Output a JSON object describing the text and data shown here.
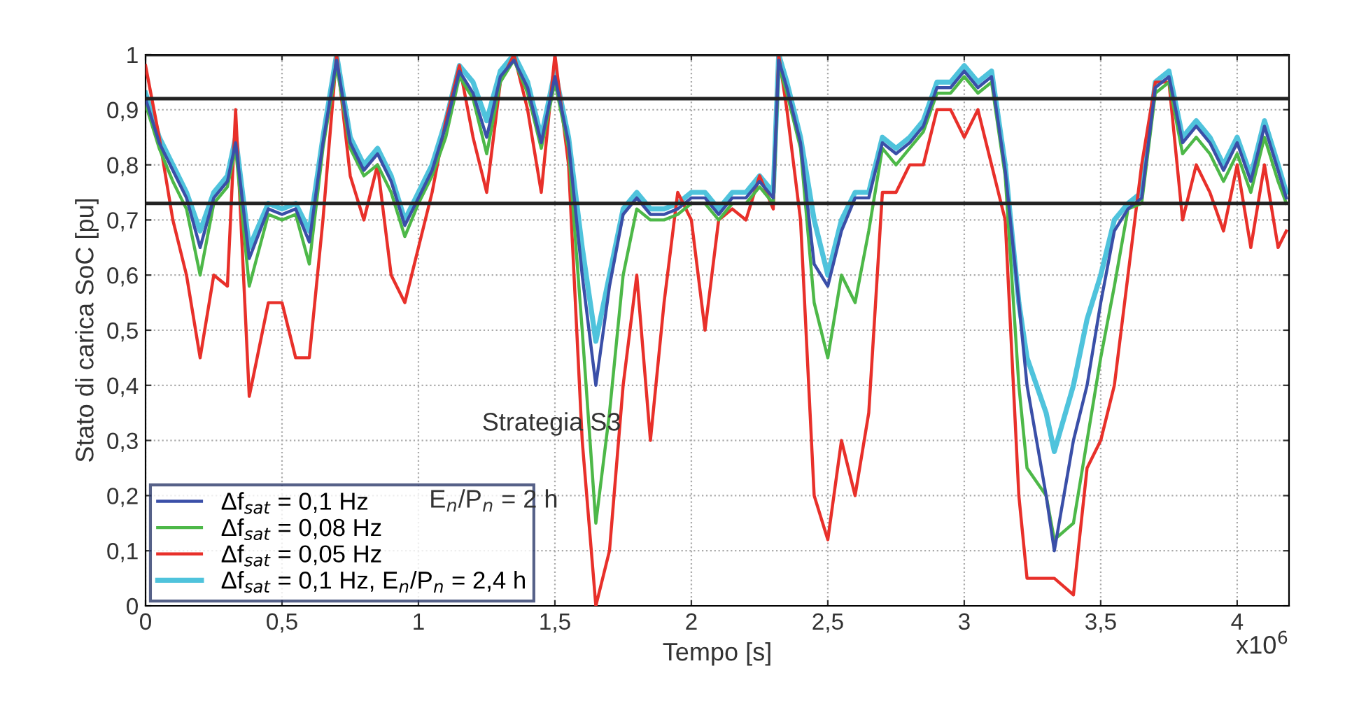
{
  "chart_data": {
    "type": "line",
    "xlabel": "Tempo [s]",
    "ylabel": "Stato di carica SoC [pu]",
    "x": [
      0,
      0.05,
      0.1,
      0.15,
      0.2,
      0.25,
      0.3,
      0.33,
      0.38,
      0.45,
      0.5,
      0.55,
      0.6,
      0.65,
      0.7,
      0.75,
      0.8,
      0.85,
      0.9,
      0.95,
      1.0,
      1.05,
      1.1,
      1.15,
      1.2,
      1.25,
      1.3,
      1.35,
      1.4,
      1.45,
      1.5,
      1.55,
      1.6,
      1.65,
      1.7,
      1.75,
      1.8,
      1.85,
      1.9,
      1.95,
      2.0,
      2.05,
      2.1,
      2.15,
      2.2,
      2.25,
      2.3,
      2.32,
      2.35,
      2.4,
      2.45,
      2.5,
      2.55,
      2.6,
      2.65,
      2.7,
      2.75,
      2.8,
      2.85,
      2.9,
      2.95,
      3.0,
      3.05,
      3.1,
      3.15,
      3.2,
      3.23,
      3.3,
      3.33,
      3.4,
      3.45,
      3.5,
      3.55,
      3.6,
      3.65,
      3.7,
      3.75,
      3.8,
      3.85,
      3.9,
      3.95,
      4.0,
      4.05,
      4.1,
      4.15,
      4.18
    ],
    "series": [
      {
        "name": "Δf$_{sat}$ = 0,1 Hz",
        "color": "#3a4fa8",
        "values": [
          0.92,
          0.84,
          0.79,
          0.74,
          0.65,
          0.74,
          0.77,
          0.84,
          0.63,
          0.72,
          0.71,
          0.72,
          0.66,
          0.84,
          0.99,
          0.84,
          0.79,
          0.82,
          0.77,
          0.69,
          0.74,
          0.79,
          0.87,
          0.97,
          0.93,
          0.85,
          0.96,
          0.99,
          0.94,
          0.84,
          0.96,
          0.84,
          0.6,
          0.4,
          0.58,
          0.71,
          0.74,
          0.71,
          0.71,
          0.72,
          0.74,
          0.74,
          0.71,
          0.74,
          0.74,
          0.77,
          0.74,
          0.99,
          0.94,
          0.84,
          0.62,
          0.58,
          0.68,
          0.74,
          0.74,
          0.84,
          0.82,
          0.84,
          0.87,
          0.94,
          0.94,
          0.97,
          0.94,
          0.96,
          0.79,
          0.55,
          0.4,
          0.2,
          0.1,
          0.3,
          0.4,
          0.55,
          0.68,
          0.72,
          0.74,
          0.94,
          0.96,
          0.84,
          0.87,
          0.84,
          0.79,
          0.84,
          0.77,
          0.87,
          0.79,
          0.74
        ]
      },
      {
        "name": "Δf$_{sat}$ = 0,08 Hz",
        "color": "#4db848",
        "values": [
          0.91,
          0.83,
          0.77,
          0.72,
          0.6,
          0.73,
          0.76,
          0.83,
          0.58,
          0.71,
          0.7,
          0.71,
          0.62,
          0.83,
          0.98,
          0.83,
          0.78,
          0.8,
          0.75,
          0.67,
          0.73,
          0.78,
          0.85,
          0.96,
          0.92,
          0.82,
          0.95,
          0.99,
          0.93,
          0.83,
          0.95,
          0.83,
          0.5,
          0.15,
          0.35,
          0.6,
          0.72,
          0.7,
          0.7,
          0.71,
          0.73,
          0.73,
          0.7,
          0.73,
          0.73,
          0.76,
          0.73,
          0.98,
          0.93,
          0.83,
          0.55,
          0.45,
          0.6,
          0.55,
          0.68,
          0.83,
          0.8,
          0.83,
          0.86,
          0.93,
          0.93,
          0.96,
          0.93,
          0.95,
          0.78,
          0.4,
          0.25,
          0.2,
          0.12,
          0.15,
          0.3,
          0.45,
          0.58,
          0.72,
          0.73,
          0.93,
          0.95,
          0.82,
          0.85,
          0.82,
          0.77,
          0.82,
          0.75,
          0.85,
          0.77,
          0.73
        ]
      },
      {
        "name": "Δf$_{sat}$ = 0,05 Hz",
        "color": "#e8302a",
        "values": [
          0.98,
          0.85,
          0.7,
          0.6,
          0.45,
          0.6,
          0.58,
          0.9,
          0.38,
          0.55,
          0.55,
          0.45,
          0.45,
          0.7,
          1.0,
          0.78,
          0.7,
          0.8,
          0.6,
          0.55,
          0.65,
          0.75,
          0.88,
          0.98,
          0.85,
          0.75,
          0.95,
          1.0,
          0.9,
          0.75,
          1.0,
          0.8,
          0.3,
          0.0,
          0.1,
          0.4,
          0.6,
          0.3,
          0.55,
          0.75,
          0.7,
          0.5,
          0.7,
          0.72,
          0.7,
          0.78,
          0.72,
          1.0,
          0.9,
          0.7,
          0.2,
          0.12,
          0.3,
          0.2,
          0.35,
          0.75,
          0.75,
          0.8,
          0.8,
          0.9,
          0.9,
          0.85,
          0.9,
          0.8,
          0.7,
          0.2,
          0.05,
          0.05,
          0.05,
          0.02,
          0.25,
          0.3,
          0.4,
          0.6,
          0.8,
          0.95,
          0.95,
          0.7,
          0.8,
          0.75,
          0.68,
          0.8,
          0.65,
          0.8,
          0.65,
          0.68
        ]
      },
      {
        "name": "Δf$_{sat}$ = 0,1 Hz, E$_{n}$/P$_{n}$ = 2,4 h",
        "color": "#4fc3dc",
        "values": [
          0.93,
          0.85,
          0.8,
          0.75,
          0.68,
          0.75,
          0.78,
          0.85,
          0.65,
          0.73,
          0.72,
          0.73,
          0.68,
          0.85,
          1.0,
          0.85,
          0.8,
          0.83,
          0.78,
          0.7,
          0.75,
          0.8,
          0.88,
          0.98,
          0.95,
          0.88,
          0.97,
          1.0,
          0.95,
          0.85,
          0.97,
          0.85,
          0.65,
          0.48,
          0.6,
          0.72,
          0.75,
          0.72,
          0.72,
          0.73,
          0.75,
          0.75,
          0.72,
          0.75,
          0.75,
          0.78,
          0.75,
          1.0,
          0.95,
          0.85,
          0.7,
          0.6,
          0.7,
          0.75,
          0.75,
          0.85,
          0.83,
          0.85,
          0.88,
          0.95,
          0.95,
          0.98,
          0.95,
          0.97,
          0.8,
          0.55,
          0.45,
          0.35,
          0.28,
          0.4,
          0.52,
          0.6,
          0.7,
          0.73,
          0.75,
          0.95,
          0.97,
          0.85,
          0.88,
          0.85,
          0.8,
          0.85,
          0.78,
          0.88,
          0.8,
          0.75
        ]
      }
    ],
    "xlim": [
      0,
      4.19
    ],
    "ylim": [
      0,
      1
    ],
    "xticks": [
      0,
      {
        "value": 0.5,
        "label": "0,5"
      },
      1,
      {
        "value": 1.5,
        "label": "1,5"
      },
      2,
      {
        "value": 2.5,
        "label": "2,5"
      },
      3,
      {
        "value": 3.5,
        "label": "3,5"
      },
      4
    ],
    "yticks": [
      0,
      {
        "value": 0.1,
        "label": "0,1"
      },
      {
        "value": 0.2,
        "label": "0,2"
      },
      {
        "value": 0.3,
        "label": "0,3"
      },
      {
        "value": 0.4,
        "label": "0,4"
      },
      {
        "value": 0.5,
        "label": "0,5"
      },
      {
        "value": 0.6,
        "label": "0,6"
      },
      {
        "value": 0.7,
        "label": "0,7"
      },
      {
        "value": 0.8,
        "label": "0,8"
      },
      {
        "value": 0.9,
        "label": "0,9"
      },
      1
    ],
    "ref_lines": [
      {
        "axis": "y",
        "value": 1,
        "color": "#222222"
      },
      {
        "axis": "y",
        "value": 0.92,
        "color": "#222222"
      },
      {
        "axis": "y",
        "value": 0.73,
        "color": "#222222"
      }
    ],
    "annotations": [
      "Strategia S3",
      "E$_{n}$/P$_{n}$ = 2 h",
      "x10$^{6}$"
    ],
    "grid": true,
    "legend": "bottom left",
    "marker": "none",
    "line_style": "solid"
  }
}
